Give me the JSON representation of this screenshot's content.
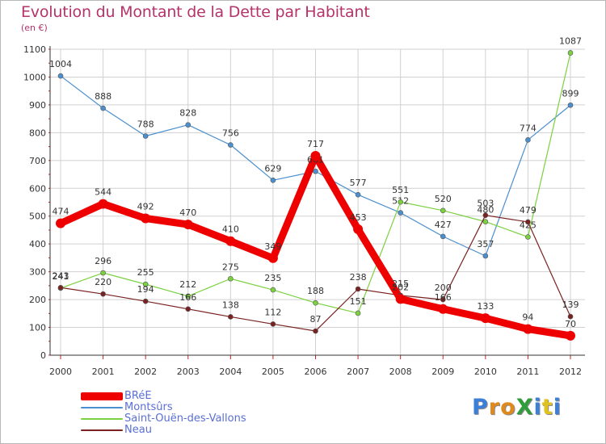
{
  "title": "Evolution du Montant de la Dette par Habitant",
  "unit": "(en €)",
  "logo": "ProXiti",
  "colors": {
    "title": "#b5326a",
    "axis": "#333333",
    "grid": "#d0d0d0",
    "tick_mark": "#cc2222",
    "legend_text": "#5a6fd6"
  },
  "chart_data": {
    "type": "line",
    "title": "Evolution du Montant de la Dette par Habitant",
    "ylabel": "(en €)",
    "xlabel": "",
    "ylim": [
      0,
      1100
    ],
    "yticks": [
      0,
      100,
      200,
      300,
      400,
      500,
      600,
      700,
      800,
      900,
      1000,
      1100
    ],
    "grid": true,
    "legend_position": "bottom-left",
    "categories": [
      "2000",
      "2001",
      "2002",
      "2003",
      "2004",
      "2005",
      "2006",
      "2007",
      "2008",
      "2009",
      "2010",
      "2011",
      "2012"
    ],
    "series": [
      {
        "name": "BRéE",
        "color": "#ee0000",
        "bold": true,
        "values": [
          474,
          544,
          492,
          470,
          410,
          349,
          717,
          453,
          202,
          166,
          133,
          94,
          70
        ]
      },
      {
        "name": "Montsûrs",
        "color": "#4b8fcf",
        "bold": false,
        "values": [
          1004,
          888,
          788,
          828,
          756,
          629,
          661,
          577,
          512,
          427,
          357,
          774,
          899
        ]
      },
      {
        "name": "Saint-Ouën-des-Vallons",
        "color": "#7cd140",
        "bold": false,
        "values": [
          241,
          296,
          255,
          212,
          275,
          235,
          188,
          151,
          551,
          520,
          480,
          425,
          1087
        ]
      },
      {
        "name": "Neau",
        "color": "#7a2222",
        "bold": false,
        "values": [
          243,
          220,
          194,
          166,
          138,
          112,
          87,
          238,
          215,
          200,
          503,
          479,
          139
        ]
      }
    ]
  }
}
